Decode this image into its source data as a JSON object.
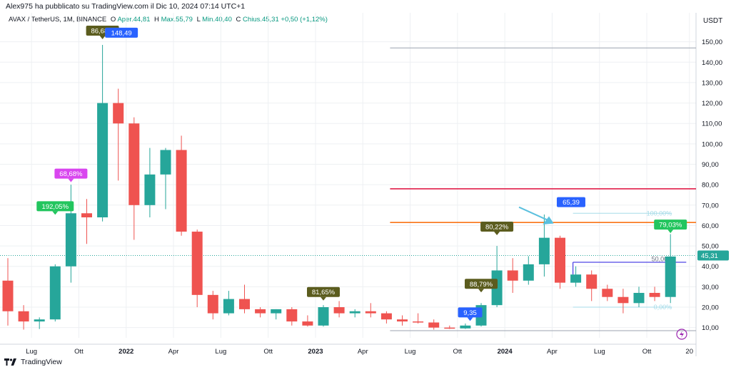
{
  "header": {
    "publisher_line": "Alex975 ha pubblicato su TradingView.com il Dic 10, 2024 07:14 UTC+1"
  },
  "legend": {
    "symbol": "AVAX / TetherUS, 1M, BINANCE",
    "open_label": "O",
    "open_value": "Aper.44,81",
    "high_label": "H",
    "high_value": "Max.55,79",
    "low_label": "L",
    "low_value": "Min.40,40",
    "close_label": "C",
    "close_value": "Chius.45,31",
    "change": "+0,50 (+1,12%)"
  },
  "footer": {
    "brand": "TradingView"
  },
  "colors": {
    "up": "#26a69a",
    "down": "#ef5350",
    "accent": "#2962ff"
  },
  "chart_data": {
    "type": "candlestick",
    "currency": "USDT",
    "y_ticks": [
      "10,00",
      "20,00",
      "30,00",
      "40,00",
      "50,00",
      "60,00",
      "70,00",
      "80,00",
      "90,00",
      "100,00",
      "110,00",
      "120,00",
      "130,00",
      "140,00",
      "150,00"
    ],
    "ylim": [
      5,
      160
    ],
    "x_ticks": [
      {
        "label": "Lug",
        "i": 1.5
      },
      {
        "label": "Ott",
        "i": 4.5
      },
      {
        "label": "2022",
        "i": 7.5
      },
      {
        "label": "Apr",
        "i": 10.5
      },
      {
        "label": "Lug",
        "i": 13.5
      },
      {
        "label": "Ott",
        "i": 16.5
      },
      {
        "label": "2023",
        "i": 19.5
      },
      {
        "label": "Apr",
        "i": 22.5
      },
      {
        "label": "Lug",
        "i": 25.5
      },
      {
        "label": "Ott",
        "i": 28.5
      },
      {
        "label": "2024",
        "i": 31.5
      },
      {
        "label": "Apr",
        "i": 34.5
      },
      {
        "label": "Lug",
        "i": 37.5
      },
      {
        "label": "Ott",
        "i": 40.5
      },
      {
        "label": "20",
        "i": 43.2
      }
    ],
    "candles": [
      {
        "o": 33,
        "h": 44,
        "l": 11,
        "c": 18
      },
      {
        "o": 18,
        "h": 21,
        "l": 9,
        "c": 13
      },
      {
        "o": 13,
        "h": 15,
        "l": 9.3,
        "c": 14
      },
      {
        "o": 14,
        "h": 41,
        "l": 13,
        "c": 40
      },
      {
        "o": 40,
        "h": 80,
        "l": 32,
        "c": 66
      },
      {
        "o": 66,
        "h": 73,
        "l": 51,
        "c": 64
      },
      {
        "o": 64,
        "h": 148.49,
        "l": 62,
        "c": 120
      },
      {
        "o": 120,
        "h": 127,
        "l": 82,
        "c": 110
      },
      {
        "o": 110,
        "h": 113,
        "l": 53,
        "c": 70
      },
      {
        "o": 70,
        "h": 98,
        "l": 64,
        "c": 85
      },
      {
        "o": 85,
        "h": 98,
        "l": 68,
        "c": 97
      },
      {
        "o": 97,
        "h": 104,
        "l": 55,
        "c": 57
      },
      {
        "o": 57,
        "h": 58,
        "l": 20,
        "c": 26
      },
      {
        "o": 26,
        "h": 28,
        "l": 14,
        "c": 17
      },
      {
        "o": 17,
        "h": 28,
        "l": 16,
        "c": 24
      },
      {
        "o": 24,
        "h": 31,
        "l": 17,
        "c": 19
      },
      {
        "o": 19,
        "h": 20,
        "l": 15,
        "c": 17
      },
      {
        "o": 17,
        "h": 19,
        "l": 14,
        "c": 19
      },
      {
        "o": 19,
        "h": 20,
        "l": 11,
        "c": 13
      },
      {
        "o": 13,
        "h": 16,
        "l": 10.5,
        "c": 11
      },
      {
        "o": 11,
        "h": 21,
        "l": 10.5,
        "c": 20
      },
      {
        "o": 20,
        "h": 23,
        "l": 15,
        "c": 17
      },
      {
        "o": 17,
        "h": 19,
        "l": 15,
        "c": 18
      },
      {
        "o": 18,
        "h": 22,
        "l": 15,
        "c": 17
      },
      {
        "o": 17,
        "h": 18,
        "l": 12,
        "c": 14
      },
      {
        "o": 14,
        "h": 16,
        "l": 11,
        "c": 13
      },
      {
        "o": 13,
        "h": 17,
        "l": 12,
        "c": 12.5
      },
      {
        "o": 12.5,
        "h": 14,
        "l": 9,
        "c": 10
      },
      {
        "o": 10,
        "h": 11,
        "l": 9.35,
        "c": 9.6
      },
      {
        "o": 9.6,
        "h": 12,
        "l": 9.35,
        "c": 11
      },
      {
        "o": 11,
        "h": 22,
        "l": 10.5,
        "c": 21
      },
      {
        "o": 21,
        "h": 50,
        "l": 20,
        "c": 38
      },
      {
        "o": 38,
        "h": 44,
        "l": 27,
        "c": 33
      },
      {
        "o": 33,
        "h": 45,
        "l": 31,
        "c": 41
      },
      {
        "o": 41,
        "h": 65.39,
        "l": 35,
        "c": 54
      },
      {
        "o": 54,
        "h": 55,
        "l": 29,
        "c": 32
      },
      {
        "o": 32,
        "h": 40,
        "l": 30,
        "c": 36
      },
      {
        "o": 36,
        "h": 38,
        "l": 23,
        "c": 29
      },
      {
        "o": 29,
        "h": 31,
        "l": 23,
        "c": 25
      },
      {
        "o": 25,
        "h": 29,
        "l": 17,
        "c": 22
      },
      {
        "o": 22,
        "h": 30,
        "l": 20,
        "c": 27
      },
      {
        "o": 27,
        "h": 30,
        "l": 23,
        "c": 25
      },
      {
        "o": 25,
        "h": 55.79,
        "l": 22,
        "c": 44.81
      }
    ],
    "current_price": "45,31",
    "badges": [
      {
        "text": "192,05%",
        "i": 3,
        "y": 67,
        "color": "#22c55e"
      },
      {
        "text": "68,68%",
        "i": 4,
        "y": 83,
        "color": "#d946ef"
      },
      {
        "text": "86,68%",
        "i": 6,
        "y": 153,
        "color": "#5b5c1e"
      },
      {
        "text": "81,65%",
        "i": 20,
        "y": 25,
        "color": "#5b5c1e"
      },
      {
        "text": "80,22%",
        "i": 31,
        "y": 57,
        "color": "#5b5c1e"
      },
      {
        "text": "88,79%",
        "i": 30,
        "y": 29,
        "color": "#5b5c1e"
      },
      {
        "text": "79,03%",
        "i": 42,
        "y": 58,
        "color": "#22c55e"
      }
    ],
    "price_labels": [
      {
        "text": "148,49",
        "i": 7.2,
        "y": 152,
        "color": "#2962ff"
      },
      {
        "text": "9,35",
        "i": 29.3,
        "y": 15,
        "color": "#2962ff"
      },
      {
        "text": "65,39",
        "i": 35.7,
        "y": 69,
        "color": "#2962ff"
      }
    ],
    "fib_labels": [
      {
        "text": "100,00%",
        "y": 66
      },
      {
        "text": "50,00%",
        "y": 43.5
      },
      {
        "text": "0,00%",
        "y": 20
      }
    ],
    "hlines": [
      {
        "y": 147,
        "color": "#9ca3af"
      },
      {
        "y": 78,
        "color": "#e11d48"
      },
      {
        "y": 61.5,
        "color": "#f97316"
      }
    ]
  }
}
